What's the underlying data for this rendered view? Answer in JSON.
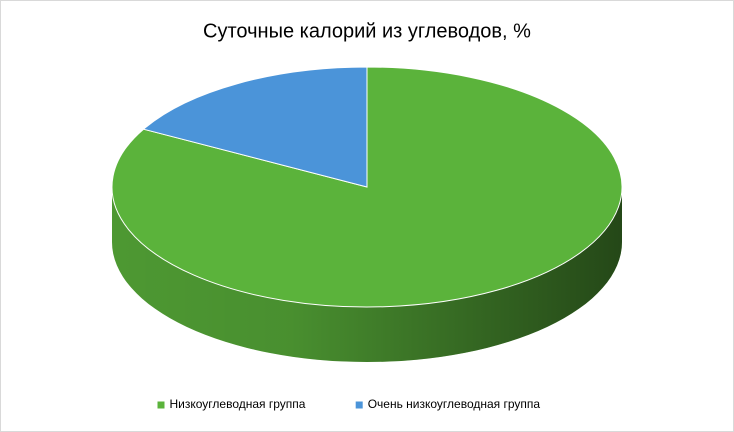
{
  "chart_data": {
    "type": "pie",
    "title": "Суточные калорий из углеводов, %",
    "categories": [
      "Низкоуглеводная группа",
      "Очень низкоуглеводная группа"
    ],
    "values": [
      83,
      17
    ],
    "colors": [
      "#5bb33b",
      "#4b94d9"
    ],
    "legend": "bottom"
  }
}
